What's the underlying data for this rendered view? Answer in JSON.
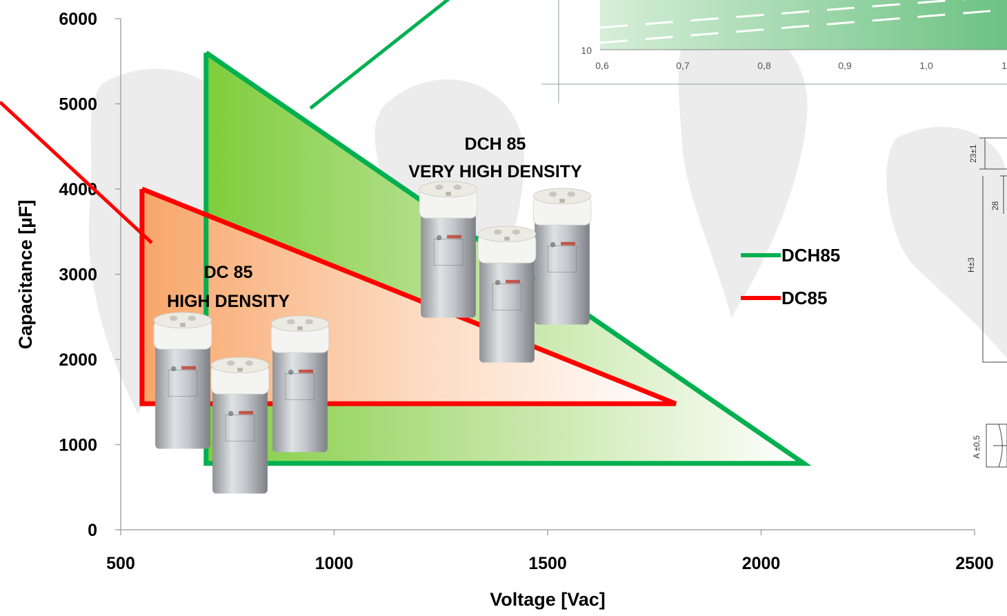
{
  "chart_data": {
    "type": "area",
    "title": "",
    "xlabel": "Voltage [Vac]",
    "ylabel": "Capacitance [µF]",
    "xlim": [
      500,
      2500
    ],
    "ylim": [
      0,
      6000
    ],
    "x_ticks": [
      "500",
      "1000",
      "1500",
      "2000",
      "2500"
    ],
    "y_ticks": [
      "0",
      "1000",
      "2000",
      "3000",
      "4000",
      "5000",
      "6000"
    ],
    "grid": false,
    "legend_position": "right",
    "series": [
      {
        "name": "DCH85",
        "color": "#00b050",
        "label_lines": [
          "DCH 85",
          "VERY HIGH DENSITY"
        ],
        "points": [
          [
            700,
            5600
          ],
          [
            700,
            780
          ],
          [
            2100,
            780
          ],
          [
            700,
            5600
          ]
        ]
      },
      {
        "name": "DC85",
        "color": "#ff0000",
        "label_lines": [
          "DC 85",
          "HIGH DENSITY"
        ],
        "points": [
          [
            550,
            4000
          ],
          [
            550,
            1480
          ],
          [
            1800,
            1480
          ],
          [
            550,
            4000
          ]
        ]
      }
    ]
  },
  "inset_chart": {
    "x_ticks": [
      "0,6",
      "0,7",
      "0,8",
      "0,9",
      "1,0",
      "1"
    ],
    "y_ticks": [
      "10"
    ]
  },
  "drawing_dims": [
    "23±1",
    "28",
    "H±3",
    "A ±0,5"
  ],
  "colors": {
    "dch85": "#00b050",
    "dc85": "#ff0000",
    "watermark": "#d9d9d9"
  },
  "icons": [
    "capacitor-cluster-icon"
  ]
}
